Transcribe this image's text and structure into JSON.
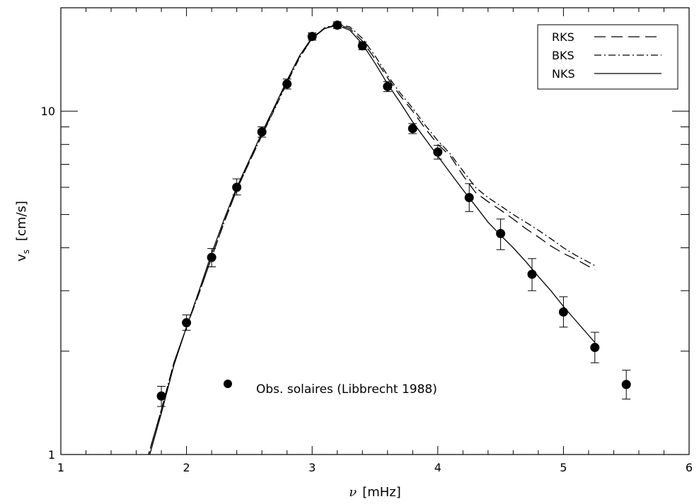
{
  "chart_data": {
    "type": "scatter",
    "xlabel_symbol": "ν",
    "xlabel_units": "[mHz]",
    "ylabel_symbol": "v",
    "ylabel_subscript": "s",
    "ylabel_units": "[cm/s]",
    "xlim": [
      1,
      6
    ],
    "ylim": [
      1,
      20
    ],
    "yscale": "log",
    "x_ticks": [
      1,
      2,
      3,
      4,
      5,
      6
    ],
    "x_tick_labels": [
      "1",
      "2",
      "3",
      "4",
      "5",
      "6"
    ],
    "y_tick_labels": [
      {
        "value": 1,
        "label": "1"
      },
      {
        "value": 10,
        "label": "10"
      }
    ],
    "legend": {
      "position": "top-right",
      "entries": [
        {
          "name": "RKS",
          "dash": "dashed"
        },
        {
          "name": "BKS",
          "dash": "dash-dot"
        },
        {
          "name": "NKS",
          "dash": "solid"
        }
      ]
    },
    "observations": {
      "label": "Obs. solaires (Libbrecht 1988)",
      "points": [
        {
          "x": 1.8,
          "y": 1.48,
          "err_lo": 1.38,
          "err_hi": 1.58
        },
        {
          "x": 2.0,
          "y": 2.42,
          "err_lo": 2.3,
          "err_hi": 2.55
        },
        {
          "x": 2.2,
          "y": 3.75,
          "err_lo": 3.52,
          "err_hi": 3.98
        },
        {
          "x": 2.4,
          "y": 6.0,
          "err_lo": 5.7,
          "err_hi": 6.35
        },
        {
          "x": 2.6,
          "y": 8.7,
          "err_lo": 8.4,
          "err_hi": 9.0
        },
        {
          "x": 2.8,
          "y": 12.0,
          "err_lo": 11.6,
          "err_hi": 12.4
        },
        {
          "x": 3.0,
          "y": 16.5,
          "err_lo": 16.1,
          "err_hi": 16.9
        },
        {
          "x": 3.2,
          "y": 17.8,
          "err_lo": 17.4,
          "err_hi": 18.2
        },
        {
          "x": 3.4,
          "y": 15.5,
          "err_lo": 15.1,
          "err_hi": 15.9
        },
        {
          "x": 3.6,
          "y": 11.8,
          "err_lo": 11.4,
          "err_hi": 12.2
        },
        {
          "x": 3.8,
          "y": 8.9,
          "err_lo": 8.6,
          "err_hi": 9.2
        },
        {
          "x": 4.0,
          "y": 7.6,
          "err_lo": 7.25,
          "err_hi": 7.95
        },
        {
          "x": 4.25,
          "y": 5.6,
          "err_lo": 5.1,
          "err_hi": 6.15
        },
        {
          "x": 4.5,
          "y": 4.4,
          "err_lo": 3.95,
          "err_hi": 4.85
        },
        {
          "x": 4.75,
          "y": 3.35,
          "err_lo": 3.0,
          "err_hi": 3.72
        },
        {
          "x": 5.0,
          "y": 2.6,
          "err_lo": 2.35,
          "err_hi": 2.88
        },
        {
          "x": 5.25,
          "y": 2.05,
          "err_lo": 1.85,
          "err_hi": 2.27
        },
        {
          "x": 5.5,
          "y": 1.6,
          "err_lo": 1.45,
          "err_hi": 1.76
        }
      ]
    },
    "series": [
      {
        "name": "RKS",
        "dash": "dashed",
        "x": [
          1.68,
          1.8,
          1.9,
          2.0,
          2.1,
          2.2,
          2.3,
          2.4,
          2.5,
          2.6,
          2.7,
          2.8,
          2.9,
          3.0,
          3.1,
          3.2,
          3.3,
          3.4,
          3.5,
          3.6,
          3.7,
          3.8,
          3.9,
          4.0,
          4.1,
          4.2,
          4.3,
          4.4,
          4.5,
          4.6,
          4.7,
          4.8,
          4.9,
          5.0,
          5.1,
          5.25
        ],
        "y": [
          0.95,
          1.35,
          1.85,
          2.35,
          2.95,
          3.75,
          4.75,
          5.9,
          7.1,
          8.5,
          10.2,
          12.2,
          14.4,
          16.3,
          17.4,
          17.9,
          17.4,
          16.0,
          14.2,
          12.5,
          11.1,
          10.0,
          8.9,
          8.0,
          7.4,
          6.5,
          5.8,
          5.45,
          5.15,
          4.85,
          4.55,
          4.3,
          4.05,
          3.85,
          3.7,
          3.45
        ]
      },
      {
        "name": "BKS",
        "dash": "dash-dot",
        "x": [
          1.68,
          1.8,
          1.9,
          2.0,
          2.1,
          2.2,
          2.3,
          2.4,
          2.5,
          2.6,
          2.7,
          2.8,
          2.9,
          3.0,
          3.1,
          3.2,
          3.3,
          3.4,
          3.5,
          3.6,
          3.7,
          3.8,
          3.9,
          4.0,
          4.1,
          4.2,
          4.3,
          4.4,
          4.5,
          4.6,
          4.7,
          4.8,
          4.9,
          5.0,
          5.1,
          5.25
        ],
        "y": [
          0.95,
          1.35,
          1.85,
          2.35,
          2.95,
          3.75,
          4.75,
          5.9,
          7.1,
          8.5,
          10.1,
          12.1,
          14.3,
          16.3,
          17.5,
          17.9,
          17.6,
          16.3,
          14.5,
          12.7,
          11.3,
          10.2,
          9.1,
          8.2,
          7.5,
          6.7,
          6.0,
          5.6,
          5.3,
          5.0,
          4.75,
          4.5,
          4.25,
          4.0,
          3.8,
          3.55
        ]
      },
      {
        "name": "NKS",
        "dash": "solid",
        "x": [
          1.68,
          1.8,
          1.9,
          2.0,
          2.1,
          2.2,
          2.3,
          2.4,
          2.5,
          2.6,
          2.7,
          2.8,
          2.9,
          3.0,
          3.1,
          3.2,
          3.3,
          3.4,
          3.5,
          3.6,
          3.7,
          3.8,
          3.9,
          4.0,
          4.1,
          4.2,
          4.3,
          4.4,
          4.5,
          4.6,
          4.7,
          4.8,
          4.9,
          5.0,
          5.1,
          5.25
        ],
        "y": [
          0.92,
          1.32,
          1.82,
          2.35,
          3.0,
          3.85,
          4.85,
          6.0,
          7.2,
          8.65,
          10.3,
          12.3,
          14.5,
          16.4,
          17.4,
          17.8,
          17.2,
          15.7,
          13.8,
          12.0,
          10.6,
          9.3,
          8.3,
          7.4,
          6.6,
          5.9,
          5.3,
          4.75,
          4.35,
          4.0,
          3.65,
          3.3,
          3.0,
          2.7,
          2.45,
          2.12
        ]
      }
    ]
  }
}
